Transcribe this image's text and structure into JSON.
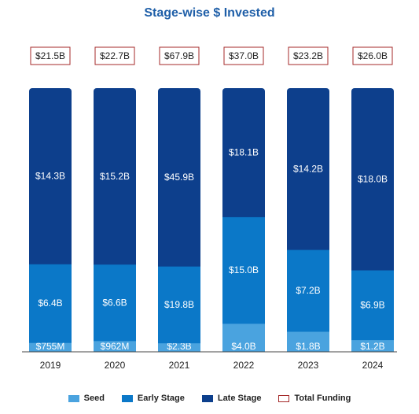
{
  "chart_data": {
    "type": "bar",
    "stacked": true,
    "title": "Stage-wise $ Invested",
    "categories": [
      "2019",
      "2020",
      "2021",
      "2022",
      "2023",
      "2024"
    ],
    "series": [
      {
        "name": "Seed",
        "color": "#4aa3df",
        "values": [
          0.755,
          0.962,
          2.3,
          4.0,
          1.8,
          1.2
        ],
        "labels": [
          "$755M",
          "$962M",
          "$2.3B",
          "$4.0B",
          "$1.8B",
          "$1.2B"
        ]
      },
      {
        "name": "Early Stage",
        "color": "#0b78c8",
        "values": [
          6.4,
          6.6,
          19.8,
          15.0,
          7.2,
          6.9
        ],
        "labels": [
          "$6.4B",
          "$6.6B",
          "$19.8B",
          "$15.0B",
          "$7.2B",
          "$6.9B"
        ]
      },
      {
        "name": "Late Stage",
        "color": "#0d3f8c",
        "values": [
          14.3,
          15.2,
          45.9,
          18.1,
          14.2,
          18.0
        ],
        "labels": [
          "$14.3B",
          "$15.2B",
          "$45.9B",
          "$18.1B",
          "$14.2B",
          "$18.0B"
        ]
      }
    ],
    "totals": {
      "name": "Total Funding",
      "color": "#a52a2a",
      "labels": [
        "$21.5B",
        "$22.7B",
        "$67.9B",
        "$37.0B",
        "$23.2B",
        "$26.0B"
      ]
    },
    "normalized": true,
    "legend_position": "bottom",
    "grid": false
  }
}
